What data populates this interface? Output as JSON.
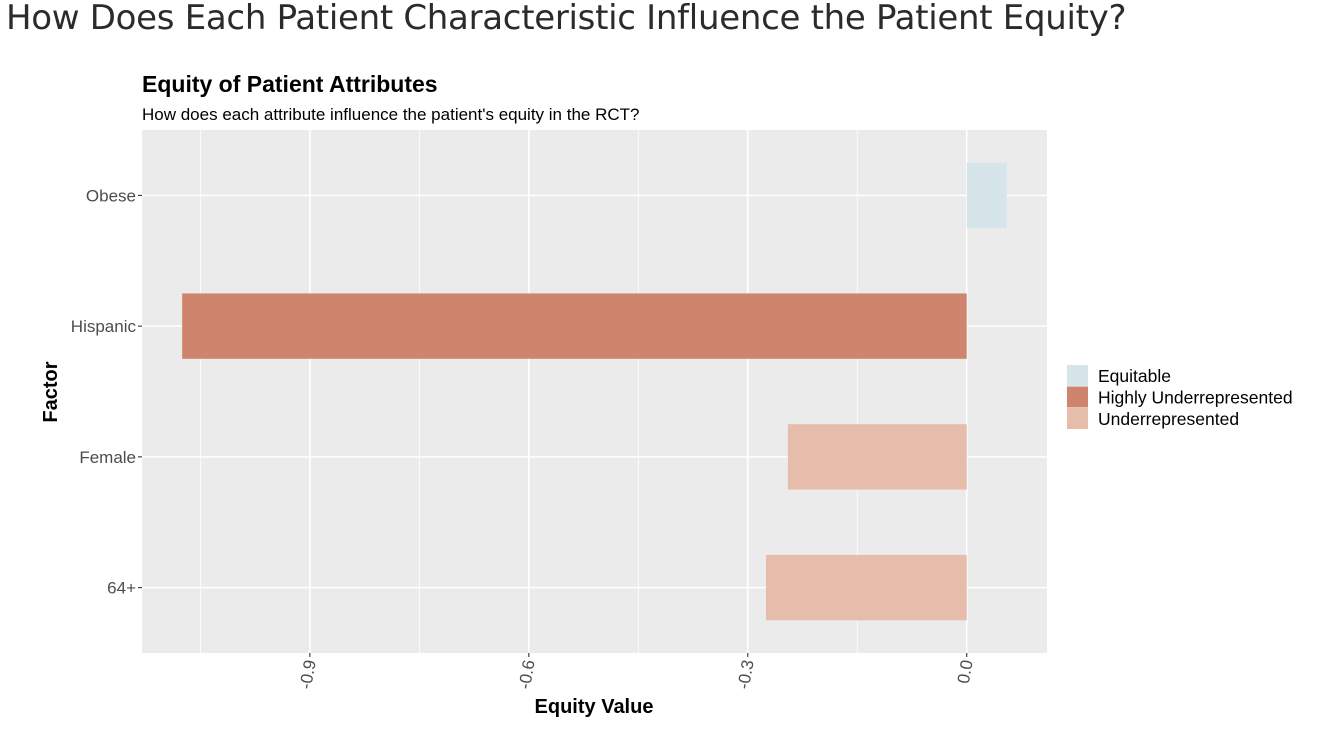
{
  "page": {
    "heading": "How Does Each Patient Characteristic Influence the Patient Equity?"
  },
  "chart_data": {
    "type": "bar",
    "orientation": "horizontal",
    "title": "Equity of Patient Attributes",
    "subtitle": "How does each attribute influence the patient's equity in the RCT?",
    "xlabel": "Equity Value",
    "ylabel": "Factor",
    "categories": [
      "Obese",
      "Hispanic",
      "Female",
      "64+"
    ],
    "values": [
      0.055,
      -1.075,
      -0.245,
      -0.275
    ],
    "groups": [
      "Equitable",
      "Highly Underrepresented",
      "Underrepresented",
      "Underrepresented"
    ],
    "xlim": [
      -1.13,
      0.11
    ],
    "x_ticks": [
      -0.9,
      -0.6,
      -0.3,
      0.0
    ],
    "x_tick_labels": [
      "-0.9",
      "-0.6",
      "-0.3",
      "0.0"
    ],
    "grid": true,
    "legend_position": "right",
    "legend": [
      {
        "name": "Equitable",
        "color": "#d6e5e9"
      },
      {
        "name": "Highly Underrepresented",
        "color": "#cf856d"
      },
      {
        "name": "Underrepresented",
        "color": "#e6bcab"
      }
    ],
    "panel_color": "#ebebeb",
    "grid_color": "#ffffff"
  }
}
